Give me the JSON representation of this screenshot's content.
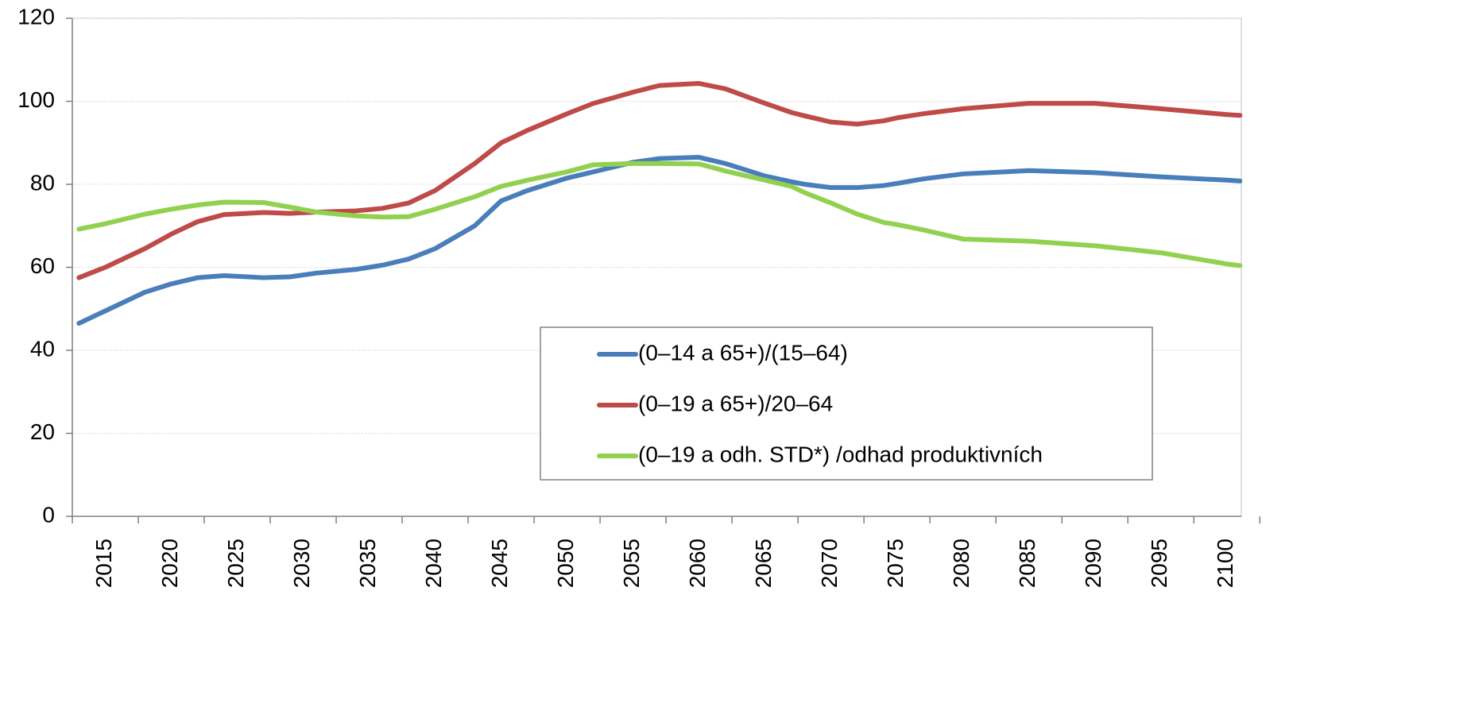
{
  "chart_data": {
    "type": "line",
    "x": [
      2013,
      2015,
      2018,
      2020,
      2022,
      2024,
      2027,
      2029,
      2031,
      2034,
      2036,
      2038,
      2040,
      2043,
      2045,
      2047,
      2050,
      2052,
      2055,
      2057,
      2060,
      2062,
      2065,
      2067,
      2068,
      2070,
      2072,
      2074,
      2075,
      2077,
      2080,
      2085,
      2090,
      2095,
      2100,
      2101
    ],
    "series": [
      {
        "name": "(0–14 a 65+)/(15–64)",
        "color": "#4a7ebb",
        "values": [
          46.5,
          49.5,
          54,
          56,
          57.5,
          58,
          57.5,
          57.7,
          58.6,
          59.5,
          60.5,
          62,
          64.5,
          70,
          76,
          78.5,
          81.5,
          83,
          85.3,
          86.2,
          86.5,
          85,
          82,
          80.6,
          80,
          79.2,
          79.2,
          79.7,
          80.2,
          81.3,
          82.5,
          83.3,
          82.8,
          81.8,
          81,
          80.8
        ]
      },
      {
        "name": "(0–19 a 65+)/20–64",
        "color": "#be4b48",
        "values": [
          57.5,
          60,
          64.5,
          68,
          71,
          72.7,
          73.2,
          73,
          73.3,
          73.6,
          74.2,
          75.5,
          78.5,
          85,
          90,
          93,
          97,
          99.5,
          102.2,
          103.8,
          104.3,
          103,
          99.5,
          97.3,
          96.5,
          95,
          94.5,
          95.3,
          96,
          97,
          98.2,
          99.5,
          99.5,
          98.2,
          96.8,
          96.6
        ]
      },
      {
        "name": "(0–19 a odh. STD*) /odhad produktivních",
        "color": "#92d050",
        "values": [
          69.2,
          70.5,
          72.8,
          74,
          75,
          75.7,
          75.6,
          74.5,
          73.3,
          72.4,
          72.1,
          72.2,
          74,
          77,
          79.5,
          81,
          83,
          84.7,
          85,
          85,
          84.9,
          83.2,
          81,
          79.5,
          78,
          75.5,
          72.8,
          70.8,
          70.3,
          69,
          66.8,
          66.3,
          65.2,
          63.5,
          60.8,
          60.4
        ]
      }
    ],
    "xlim": [
      2012.5,
      2101.1
    ],
    "xticks": [
      2015,
      2020,
      2025,
      2030,
      2035,
      2040,
      2045,
      2050,
      2055,
      2060,
      2065,
      2070,
      2075,
      2080,
      2085,
      2090,
      2095,
      2100
    ],
    "ylim": [
      0,
      120
    ],
    "yticks": [
      0,
      20,
      40,
      60,
      80,
      100,
      120
    ],
    "grid": true,
    "legend": "bottom-right"
  }
}
